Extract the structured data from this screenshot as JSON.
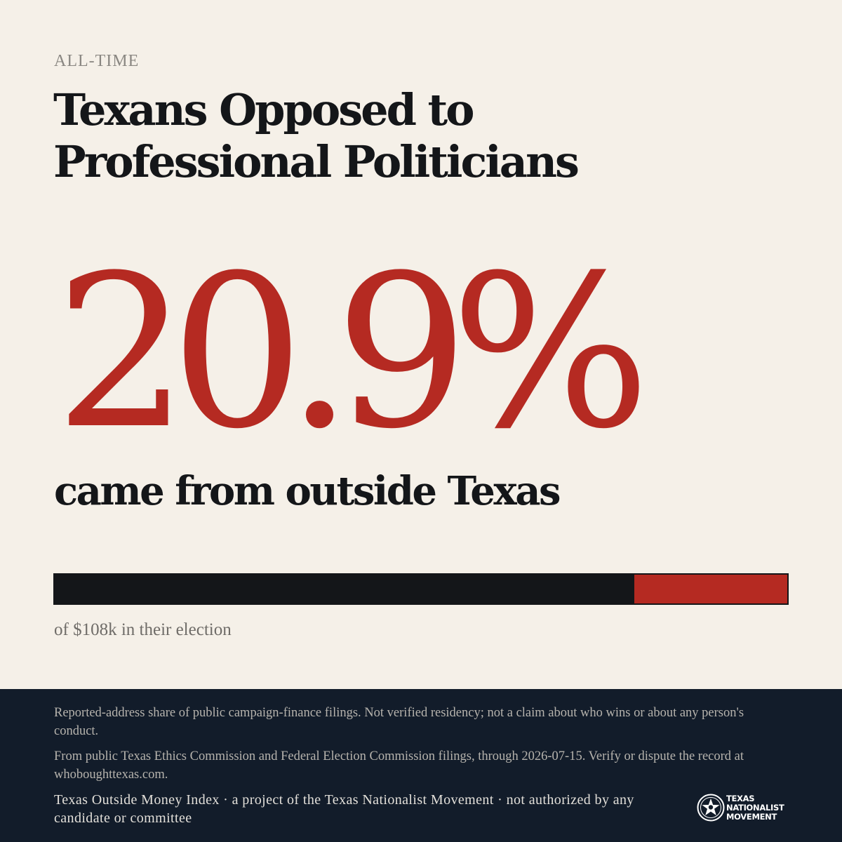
{
  "header": {
    "eyebrow": "ALL-TIME",
    "title": "Texans Opposed to Professional Politicians"
  },
  "stat": {
    "value": "20.9%",
    "subline": "came from outside Texas",
    "outside_share": 0.209,
    "bar_caption": "of $108k in their election"
  },
  "colors": {
    "background": "#f5f0e8",
    "accent_red": "#b52a22",
    "ink": "#141619",
    "footer_bg": "#121c2a"
  },
  "footer": {
    "disclaimer": "Reported-address share of public campaign-finance filings. Not verified residency; not a claim about who wins or about any person's conduct.",
    "source": "From public Texas Ethics Commission and Federal Election Commission filings, through 2026-07-15. Verify or dispute the record at whoboughttexas.com.",
    "credit": "Texas Outside Money Index · a project of the Texas Nationalist Movement · not authorized by any candidate or committee",
    "logo": {
      "icon": "star-seal-icon",
      "line1": "TEXAS",
      "line2": "NATIONALIST",
      "line3": "MOVEMENT"
    }
  }
}
